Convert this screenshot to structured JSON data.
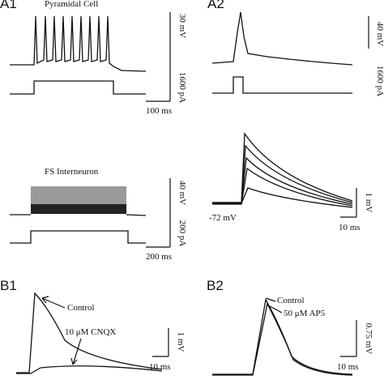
{
  "panels": {
    "a1": {
      "label": "A1",
      "top_title": "Pyramidal Cell",
      "top_voltage": "30 mV",
      "top_current": "1600 pA",
      "top_time": "100 ms",
      "bottom_title": "FS Interneuron",
      "bottom_voltage": "40 mV",
      "bottom_current": "200 pA",
      "bottom_time": "200 ms"
    },
    "a2": {
      "label": "A2",
      "top_voltage": "40 mV",
      "top_current": "1600 pA",
      "holding": "-72 mV",
      "bottom_voltage": "1 mV",
      "bottom_time": "10 ms"
    },
    "b1": {
      "label": "B1",
      "control": "Control",
      "drug": "10 μM CNQX",
      "voltage": "1 mV",
      "time": "10 ms"
    },
    "b2": {
      "label": "B2",
      "control": "Control",
      "drug": "50 μM AP5",
      "voltage": "0.75 mV",
      "time": "10 ms"
    }
  }
}
